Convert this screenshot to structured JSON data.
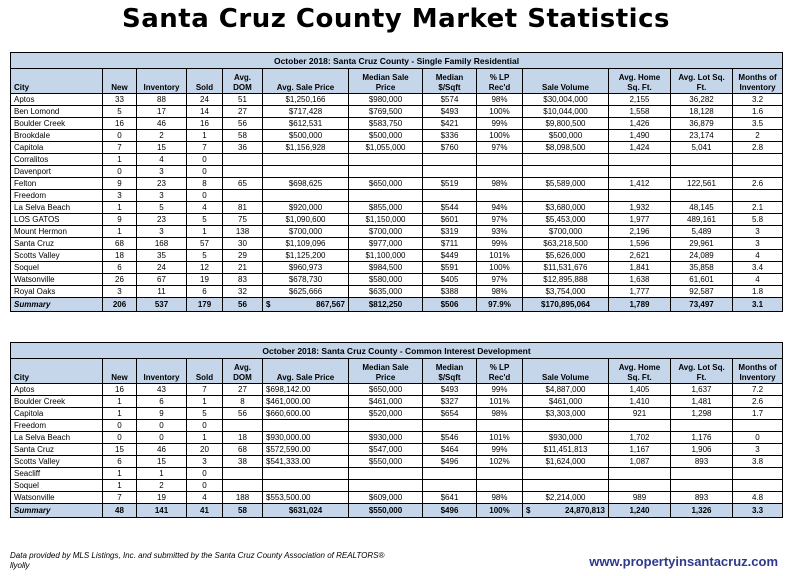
{
  "title": "Santa Cruz County Market Statistics",
  "columns": [
    "City",
    "New",
    "Inventory",
    "Sold",
    "Avg. DOM",
    "Avg. Sale Price",
    "Median Sale Price",
    "Median $/Sqft",
    "% LP Rec'd",
    "Sale Volume",
    "Avg. Home Sq. Ft.",
    "Avg. Lot Sq. Ft.",
    "Months of Inventory"
  ],
  "sfr": {
    "caption": "October 2018: Santa Cruz County - Single Family Residential",
    "rows": [
      [
        "Aptos",
        "33",
        "88",
        "24",
        "51",
        "$1,250,166",
        "$980,000",
        "$574",
        "98%",
        "$30,004,000",
        "2,155",
        "36,282",
        "3.2"
      ],
      [
        "Ben Lomond",
        "5",
        "17",
        "14",
        "27",
        "$717,428",
        "$769,500",
        "$493",
        "100%",
        "$10,044,000",
        "1,558",
        "18,128",
        "1.6"
      ],
      [
        "Boulder Creek",
        "16",
        "46",
        "16",
        "56",
        "$612,531",
        "$583,750",
        "$421",
        "99%",
        "$9,800,500",
        "1,426",
        "36,879",
        "3.5"
      ],
      [
        "Brookdale",
        "0",
        "2",
        "1",
        "58",
        "$500,000",
        "$500,000",
        "$336",
        "100%",
        "$500,000",
        "1,490",
        "23,174",
        "2"
      ],
      [
        "Capitola",
        "7",
        "15",
        "7",
        "36",
        "$1,156,928",
        "$1,055,000",
        "$760",
        "97%",
        "$8,098,500",
        "1,424",
        "5,041",
        "2.8"
      ],
      [
        "Corralitos",
        "1",
        "4",
        "0",
        "",
        "",
        "",
        "",
        "",
        "",
        "",
        "",
        ""
      ],
      [
        "Davenport",
        "0",
        "3",
        "0",
        "",
        "",
        "",
        "",
        "",
        "",
        "",
        "",
        ""
      ],
      [
        "Felton",
        "9",
        "23",
        "8",
        "65",
        "$698,625",
        "$650,000",
        "$519",
        "98%",
        "$5,589,000",
        "1,412",
        "122,561",
        "2.6"
      ],
      [
        "Freedom",
        "3",
        "3",
        "0",
        "",
        "",
        "",
        "",
        "",
        "",
        "",
        "",
        ""
      ],
      [
        "La Selva Beach",
        "1",
        "5",
        "4",
        "81",
        "$920,000",
        "$855,000",
        "$544",
        "94%",
        "$3,680,000",
        "1,932",
        "48,145",
        "2.1"
      ],
      [
        "LOS GATOS",
        "9",
        "23",
        "5",
        "75",
        "$1,090,600",
        "$1,150,000",
        "$601",
        "97%",
        "$5,453,000",
        "1,977",
        "489,161",
        "5.8"
      ],
      [
        "Mount Hermon",
        "1",
        "3",
        "1",
        "138",
        "$700,000",
        "$700,000",
        "$319",
        "93%",
        "$700,000",
        "2,196",
        "5,489",
        "3"
      ],
      [
        "Santa Cruz",
        "68",
        "168",
        "57",
        "30",
        "$1,109,096",
        "$977,000",
        "$711",
        "99%",
        "$63,218,500",
        "1,596",
        "29,961",
        "3"
      ],
      [
        "Scotts Valley",
        "18",
        "35",
        "5",
        "29",
        "$1,125,200",
        "$1,100,000",
        "$449",
        "101%",
        "$5,626,000",
        "2,621",
        "24,089",
        "4"
      ],
      [
        "Soquel",
        "6",
        "24",
        "12",
        "21",
        "$960,973",
        "$984,500",
        "$591",
        "100%",
        "$11,531,676",
        "1,841",
        "35,858",
        "3.4"
      ],
      [
        "Watsonville",
        "26",
        "67",
        "19",
        "83",
        "$678,730",
        "$580,000",
        "$405",
        "97%",
        "$12,895,888",
        "1,638",
        "61,601",
        "4"
      ],
      [
        "Royal Oaks",
        "3",
        "11",
        "6",
        "32",
        "$625,666",
        "$635,000",
        "$388",
        "98%",
        "$3,754,000",
        "1,777",
        "92,587",
        "1.8"
      ]
    ],
    "summary": {
      "label": "Summary",
      "new": "206",
      "inventory": "537",
      "sold": "179",
      "dom": "56",
      "price_sign": "$",
      "price": "867,567",
      "median": "$812,250",
      "sqft": "$506",
      "lp": "97.9%",
      "volume": "$170,895,064",
      "home": "1,789",
      "lot": "73,497",
      "months": "3.1"
    }
  },
  "cid": {
    "caption": "October 2018: Santa Cruz County - Common Interest Development",
    "rows": [
      [
        "Aptos",
        "16",
        "43",
        "7",
        "27",
        "$698,142.00",
        "$650,000",
        "$493",
        "99%",
        "$4,887,000",
        "1,405",
        "1,637",
        "7.2"
      ],
      [
        "Boulder Creek",
        "1",
        "6",
        "1",
        "8",
        "$461,000.00",
        "$461,000",
        "$327",
        "101%",
        "$461,000",
        "1,410",
        "1,481",
        "2.6"
      ],
      [
        "Capitola",
        "1",
        "9",
        "5",
        "56",
        "$660,600.00",
        "$520,000",
        "$654",
        "98%",
        "$3,303,000",
        "921",
        "1,298",
        "1.7"
      ],
      [
        "Freedom",
        "0",
        "0",
        "0",
        "",
        "",
        "",
        "",
        "",
        "",
        "",
        "",
        ""
      ],
      [
        "La Selva Beach",
        "0",
        "0",
        "1",
        "18",
        "$930,000.00",
        "$930,000",
        "$546",
        "101%",
        "$930,000",
        "1,702",
        "1,176",
        "0"
      ],
      [
        "Santa Cruz",
        "15",
        "46",
        "20",
        "68",
        "$572,590.00",
        "$547,000",
        "$464",
        "99%",
        "$11,451,813",
        "1,167",
        "1,906",
        "3"
      ],
      [
        "Scotts Valley",
        "6",
        "15",
        "3",
        "38",
        "$541,333.00",
        "$550,000",
        "$496",
        "102%",
        "$1,624,000",
        "1,087",
        "893",
        "3.8"
      ],
      [
        "Seacliff",
        "1",
        "1",
        "0",
        "",
        "",
        "",
        "",
        "",
        "",
        "",
        "",
        ""
      ],
      [
        "Soquel",
        "1",
        "2",
        "0",
        "",
        "",
        "",
        "",
        "",
        "",
        "",
        "",
        ""
      ],
      [
        "Watsonville",
        "7",
        "19",
        "4",
        "188",
        "$553,500.00",
        "$609,000",
        "$641",
        "98%",
        "$2,214,000",
        "989",
        "893",
        "4.8"
      ]
    ],
    "summary": {
      "label": "Summary",
      "new": "48",
      "inventory": "141",
      "sold": "41",
      "dom": "58",
      "price": "$631,024",
      "median": "$550,000",
      "sqft": "$496",
      "lp": "100%",
      "volume_sign": "$",
      "volume": "24,870,813",
      "home": "1,240",
      "lot": "1,326",
      "months": "3.3"
    }
  },
  "footer": {
    "line1": "Data provided by MLS Listings, Inc. and submitted by the Santa Cruz County Association of REALTORS®",
    "line2": "llyolly",
    "website": "www.propertyinsantacruz.com"
  }
}
